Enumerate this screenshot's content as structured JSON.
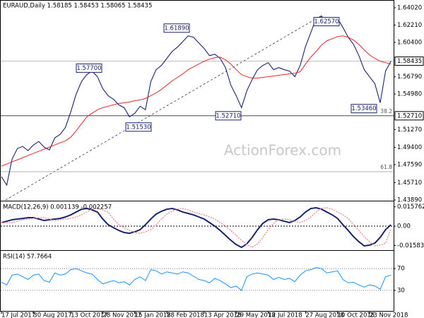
{
  "chart_data": [
    {
      "type": "line",
      "title": "EURAUD,Daily 1.58185 1.58453 1.58065 1.58435",
      "ylim": [
        1.4389,
        1.6476
      ],
      "yticks": [
        {
          "value": 1.6402,
          "label": "1.64020"
        },
        {
          "value": 1.6221,
          "label": "1.62210"
        },
        {
          "value": 1.604,
          "label": "1.60400"
        },
        {
          "value": 1.5679,
          "label": "1.56790"
        },
        {
          "value": 1.5498,
          "label": "1.54980"
        },
        {
          "value": 1.5127,
          "label": "1.51270"
        },
        {
          "value": 1.494,
          "label": "1.49400"
        },
        {
          "value": 1.4759,
          "label": "1.47590"
        },
        {
          "value": 1.4571,
          "label": "1.45710"
        },
        {
          "value": 1.4389,
          "label": "1.43890"
        }
      ],
      "series": [
        {
          "color": "#1b2470",
          "values": [
            1.4634,
            1.4545,
            1.4818,
            1.4928,
            1.495,
            1.4906,
            1.4965,
            1.5002,
            1.4943,
            1.4914,
            1.5039,
            1.5076,
            1.5149,
            1.5312,
            1.5496,
            1.5628,
            1.5702,
            1.5739,
            1.568,
            1.5555,
            1.5481,
            1.5444,
            1.5385,
            1.5356,
            1.526,
            1.5297,
            1.5371,
            1.5334,
            1.5628,
            1.5754,
            1.5798,
            1.5872,
            1.5945,
            1.599,
            1.6049,
            1.6108,
            1.6093,
            1.6034,
            1.5975,
            1.5901,
            1.5916,
            1.5872,
            1.5776,
            1.5592,
            1.5481,
            1.5356,
            1.5533,
            1.5651,
            1.5754,
            1.5798,
            1.5827,
            1.5754,
            1.5776,
            1.5754,
            1.5739,
            1.568,
            1.5798,
            1.5997,
            1.6144,
            1.6292,
            1.6314,
            1.6255,
            1.627,
            1.6292,
            1.6196,
            1.6093,
            1.6019,
            1.5901,
            1.5754,
            1.568,
            1.5606,
            1.5407,
            1.5739,
            1.5842
          ]
        },
        {
          "color": "#e3242b",
          "values": [
            1.4744,
            1.4766,
            1.4788,
            1.481,
            1.4832,
            1.4855,
            1.4877,
            1.4899,
            1.4921,
            1.4943,
            1.4965,
            1.4987,
            1.5009,
            1.5046,
            1.5113,
            1.5186,
            1.526,
            1.5297,
            1.5334,
            1.5356,
            1.5371,
            1.5385,
            1.54,
            1.5407,
            1.5415,
            1.5429,
            1.5437,
            1.5452,
            1.5481,
            1.5511,
            1.5547,
            1.5592,
            1.5636,
            1.5673,
            1.571,
            1.5754,
            1.5783,
            1.5813,
            1.5842,
            1.5864,
            1.5879,
            1.5886,
            1.5857,
            1.5813,
            1.5754,
            1.5702,
            1.568,
            1.5665,
            1.5665,
            1.5673,
            1.568,
            1.5687,
            1.5695,
            1.5702,
            1.571,
            1.5717,
            1.5732,
            1.5813,
            1.5886,
            1.5945,
            1.6012,
            1.6056,
            1.6078,
            1.61,
            1.6108,
            1.6093,
            1.6063,
            1.6019,
            1.596,
            1.5909,
            1.5872,
            1.5842,
            1.5828,
            1.5813
          ]
        }
      ],
      "annotations": [
        {
          "value": 1.577,
          "label": "1.57700"
        },
        {
          "value": 1.5153,
          "label": "1.51530"
        },
        {
          "value": 1.6189,
          "label": "1.61890"
        },
        {
          "value": 1.5271,
          "label": "1.52710"
        },
        {
          "value": 1.6257,
          "label": "1.62570"
        },
        {
          "value": 1.5346,
          "label": "1.53460"
        }
      ],
      "price_labels": [
        {
          "value": 1.58435,
          "label": "1.58435"
        },
        {
          "value": 1.5271,
          "label": "1.52710"
        }
      ],
      "fib_levels": [
        {
          "level": 38.2,
          "price": 1.5271
        },
        {
          "level": 61.8,
          "price": 1.4685
        }
      ],
      "watermark": "ActionForex.com"
    },
    {
      "type": "line",
      "title": "MACD(12,26,9) 0.001139 -0.002257",
      "ylim": [
        -0.019,
        0.0196
      ],
      "yticks": [
        0.015762,
        {
          "value": 0,
          "label": "0.00"
        },
        -0.015834
      ],
      "zero_line": true,
      "series": [
        {
          "color": "#1b2470",
          "values": [
            0.0029,
            0.004,
            0.0052,
            0.0058,
            0.0063,
            0.0069,
            0.0069,
            0.0058,
            0.0046,
            0.0052,
            0.0058,
            0.0063,
            0.0075,
            0.0092,
            0.0115,
            0.0138,
            0.0144,
            0.0132,
            0.0115,
            0.0058,
            0.0012,
            -0.0012,
            -0.0035,
            -0.0052,
            -0.0058,
            -0.0046,
            -0.0029,
            0.0012,
            0.0058,
            0.0098,
            0.0121,
            0.0138,
            0.0144,
            0.0132,
            0.0115,
            0.0104,
            0.0092,
            0.0075,
            0.0058,
            0.0029,
            0,
            -0.0035,
            -0.0075,
            -0.0115,
            -0.015,
            -0.0173,
            -0.0144,
            -0.0092,
            -0.0029,
            0.0023,
            0.0052,
            0.0058,
            0.0052,
            0.004,
            0.0029,
            0.0046,
            0.0075,
            0.0115,
            0.0144,
            0.015,
            0.0138,
            0.0115,
            0.0092,
            0.0063,
            0.0012,
            -0.0035,
            -0.0086,
            -0.0127,
            -0.0161,
            -0.0155,
            -0.0138,
            -0.0092,
            -0.0029,
            0.0011
          ]
        },
        {
          "color": "#e89090",
          "values": [
            0.0029,
            0.0029,
            0.0029,
            0.004,
            0.0052,
            0.0058,
            0.0063,
            0.0069,
            0.0069,
            0.0058,
            0.0046,
            0.0052,
            0.0058,
            0.0063,
            0.0075,
            0.0092,
            0.0115,
            0.0138,
            0.0144,
            0.0132,
            0.0115,
            0.0058,
            0.0012,
            -0.0012,
            -0.0035,
            -0.0052,
            -0.0058,
            -0.0046,
            -0.0029,
            0.0012,
            0.0058,
            0.0098,
            0.0121,
            0.0138,
            0.0144,
            0.0132,
            0.0115,
            0.0104,
            0.0092,
            0.0075,
            0.0058,
            0.0029,
            0,
            -0.0035,
            -0.0075,
            -0.0115,
            -0.015,
            -0.0173,
            -0.0144,
            -0.0092,
            -0.0029,
            0.0023,
            0.0052,
            0.0058,
            0.0052,
            0.004,
            0.0029,
            0.0046,
            0.0075,
            0.0115,
            0.0144,
            0.015,
            0.0138,
            0.0115,
            0.0092,
            0.0063,
            0.0012,
            -0.0035,
            -0.0086,
            -0.0127,
            -0.0161,
            -0.0155,
            -0.0138,
            -0.0023
          ]
        }
      ]
    },
    {
      "type": "line",
      "title": "RSI(14) 57.7664",
      "ylim": [
        0,
        100
      ],
      "yticks": [
        70,
        30
      ],
      "tick_lines": true,
      "categories": [
        "17 Jul 2017",
        null,
        null,
        null,
        null,
        null,
        "30 Aug 2017",
        null,
        null,
        null,
        null,
        null,
        null,
        "13 Oct 2017",
        null,
        null,
        null,
        null,
        null,
        "28 Nov 2017",
        null,
        null,
        null,
        null,
        null,
        "15 Jan 2018",
        null,
        null,
        null,
        null,
        null,
        "28 Feb 2018",
        null,
        null,
        null,
        null,
        null,
        null,
        "13 Apr 2018",
        null,
        null,
        null,
        null,
        null,
        "29 May 2018",
        null,
        null,
        null,
        null,
        null,
        "12 Jul 2018",
        null,
        null,
        null,
        null,
        null,
        null,
        "27 Aug 2018",
        null,
        null,
        null,
        null,
        null,
        "10 Oct 2018",
        null,
        null,
        null,
        null,
        null,
        "23 Nov 2018",
        null,
        null,
        null,
        null
      ],
      "series": [
        {
          "color": "#1e90ff",
          "values": [
            45,
            40,
            58,
            60,
            55,
            50,
            58,
            60,
            48,
            45,
            62,
            58,
            60,
            68,
            70,
            66,
            62,
            60,
            50,
            42,
            45,
            48,
            44,
            46,
            40,
            50,
            55,
            48,
            68,
            66,
            60,
            64,
            62,
            60,
            64,
            62,
            56,
            50,
            48,
            44,
            52,
            48,
            42,
            35,
            38,
            30,
            55,
            60,
            62,
            60,
            58,
            50,
            54,
            50,
            52,
            46,
            58,
            66,
            68,
            72,
            70,
            62,
            64,
            66,
            50,
            44,
            45,
            40,
            36,
            40,
            38,
            32,
            55,
            58
          ]
        }
      ]
    }
  ]
}
